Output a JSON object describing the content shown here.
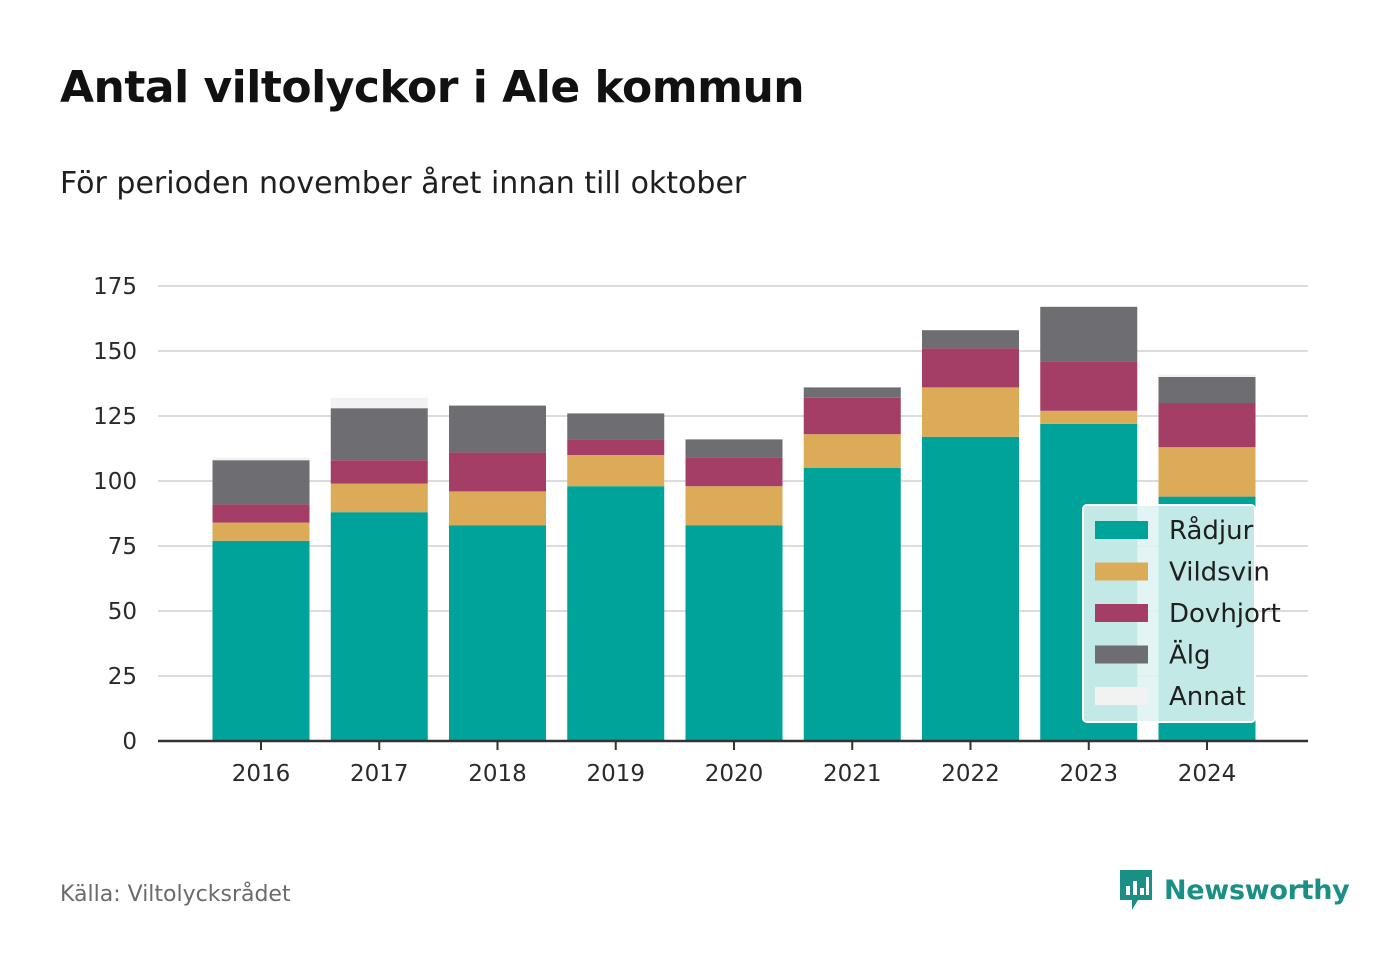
{
  "header": {
    "title": "Antal viltolyckor i Ale kommun",
    "subtitle": "För perioden november året innan till oktober"
  },
  "footer": {
    "source": "Källa: Viltolycksrådet",
    "brand": "Newsworthy",
    "brand_icon": "newsworthy-logo-icon"
  },
  "colors": {
    "Rådjur": "#00a39a",
    "Vildsvin": "#dbab57",
    "Dovhjort": "#a53e66",
    "Älg": "#6d6d72",
    "Annat": "#f2f2f2",
    "brand": "#1a8f86"
  },
  "chart_data": {
    "type": "bar",
    "stacked": true,
    "categories": [
      "2016",
      "2017",
      "2018",
      "2019",
      "2020",
      "2021",
      "2022",
      "2023",
      "2024"
    ],
    "series": [
      {
        "name": "Rådjur",
        "values": [
          77,
          88,
          83,
          98,
          83,
          105,
          117,
          122,
          94
        ]
      },
      {
        "name": "Vildsvin",
        "values": [
          7,
          11,
          13,
          12,
          15,
          13,
          19,
          5,
          19
        ]
      },
      {
        "name": "Dovhjort",
        "values": [
          7,
          9,
          15,
          6,
          11,
          14,
          15,
          19,
          17
        ]
      },
      {
        "name": "Älg",
        "values": [
          17,
          20,
          18,
          10,
          7,
          4,
          7,
          21,
          10
        ]
      },
      {
        "name": "Annat",
        "values": [
          1,
          4,
          0,
          0,
          0,
          0,
          0,
          0,
          1
        ]
      }
    ],
    "yticks": [
      0,
      25,
      50,
      75,
      100,
      125,
      150,
      175
    ],
    "ylim": [
      0,
      175
    ],
    "xlabel": "",
    "ylabel": "",
    "grid": true,
    "legend_position": "right-inside"
  }
}
